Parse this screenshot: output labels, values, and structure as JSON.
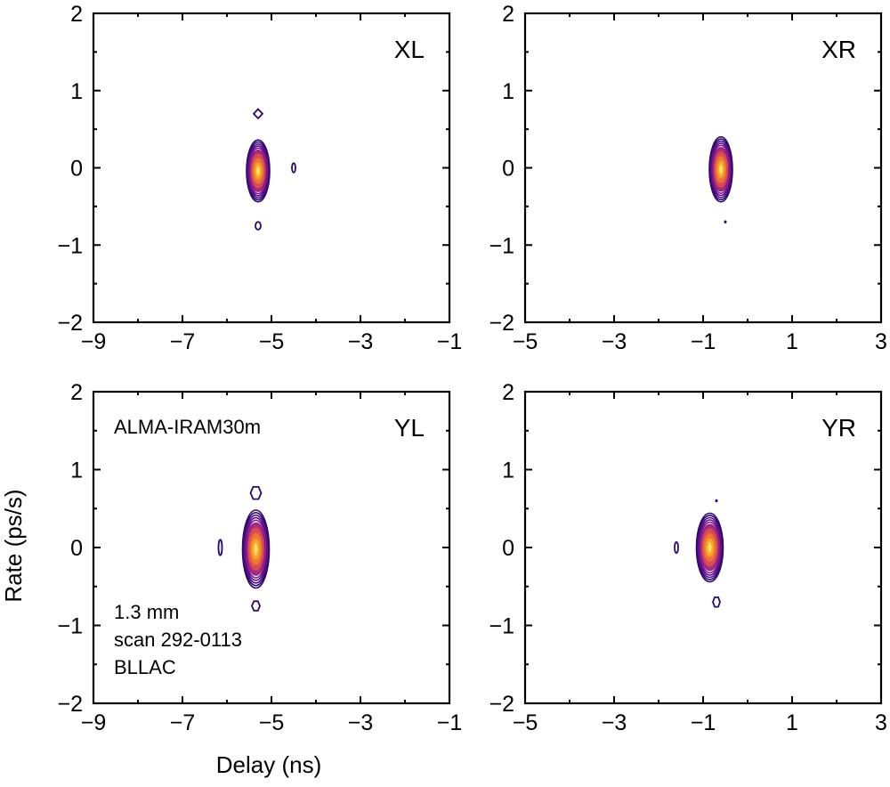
{
  "figure": {
    "xlabel": "Delay (ns)",
    "ylabel": "Rate (ps/s)",
    "baseline": "ALMA-IRAM30m",
    "notes": [
      "1.3 mm",
      "scan 292-0113",
      "BLLAC"
    ],
    "colormap": [
      "#2c0a6b",
      "#5a0d8a",
      "#8a1a86",
      "#b52f6d",
      "#d84f51",
      "#ee7a35",
      "#f9a824",
      "#fcd64a"
    ]
  },
  "chart_data": [
    {
      "type": "contour",
      "title": "XL",
      "xlim": [
        -9,
        -1
      ],
      "ylim": [
        -2,
        2
      ],
      "xticks": [
        "−9",
        "−7",
        "−5",
        "−3",
        "−1"
      ],
      "yticks": [
        "2",
        "1",
        "0",
        "−1",
        "−2"
      ],
      "peak": {
        "delay": -5.3,
        "rate": -0.04,
        "sx": 0.26,
        "sy": 0.4
      },
      "sidelobes": [
        {
          "delay": -5.3,
          "rate": 0.7,
          "sx": 0.1,
          "sy": 0.06,
          "shape": "diamond"
        },
        {
          "delay": -5.3,
          "rate": -0.75,
          "sx": 0.06,
          "sy": 0.05,
          "shape": "ellipse"
        },
        {
          "delay": -4.5,
          "rate": 0.0,
          "sx": 0.03,
          "sy": 0.06,
          "shape": "ellipse"
        }
      ]
    },
    {
      "type": "contour",
      "title": "XR",
      "xlim": [
        -5,
        3
      ],
      "ylim": [
        -2,
        2
      ],
      "xticks": [
        "−5",
        "−3",
        "−1",
        "1",
        "3"
      ],
      "yticks": [
        "2",
        "1",
        "0",
        "−1",
        "−2"
      ],
      "peak": {
        "delay": -0.6,
        "rate": -0.02,
        "sx": 0.26,
        "sy": 0.42
      },
      "sidelobes": [
        {
          "delay": -0.5,
          "rate": -0.7,
          "sx": 0.03,
          "sy": 0.02,
          "shape": "dot"
        }
      ]
    },
    {
      "type": "contour",
      "title": "YL",
      "xlim": [
        -9,
        -1
      ],
      "ylim": [
        -2,
        2
      ],
      "xticks": [
        "−9",
        "−7",
        "−5",
        "−3",
        "−1"
      ],
      "yticks": [
        "2",
        "1",
        "0",
        "−1",
        "−2"
      ],
      "peak": {
        "delay": -5.35,
        "rate": -0.02,
        "sx": 0.3,
        "sy": 0.5
      },
      "sidelobes": [
        {
          "delay": -5.35,
          "rate": 0.7,
          "sx": 0.12,
          "sy": 0.09,
          "shape": "hexagon"
        },
        {
          "delay": -5.35,
          "rate": -0.75,
          "sx": 0.09,
          "sy": 0.07,
          "shape": "hexagon"
        },
        {
          "delay": -6.15,
          "rate": 0.0,
          "sx": 0.04,
          "sy": 0.1,
          "shape": "ellipse"
        }
      ]
    },
    {
      "type": "contour",
      "title": "YR",
      "xlim": [
        -5,
        3
      ],
      "ylim": [
        -2,
        2
      ],
      "xticks": [
        "−5",
        "−3",
        "−1",
        "1",
        "3"
      ],
      "yticks": [
        "2",
        "1",
        "0",
        "−1",
        "−2"
      ],
      "peak": {
        "delay": -0.85,
        "rate": 0.0,
        "sx": 0.3,
        "sy": 0.44
      },
      "sidelobes": [
        {
          "delay": -0.7,
          "rate": -0.7,
          "sx": 0.08,
          "sy": 0.07,
          "shape": "hexagon"
        },
        {
          "delay": -0.7,
          "rate": 0.6,
          "sx": 0.025,
          "sy": 0.02,
          "shape": "dot"
        },
        {
          "delay": -1.6,
          "rate": 0.0,
          "sx": 0.03,
          "sy": 0.07,
          "shape": "ellipse"
        }
      ]
    }
  ]
}
